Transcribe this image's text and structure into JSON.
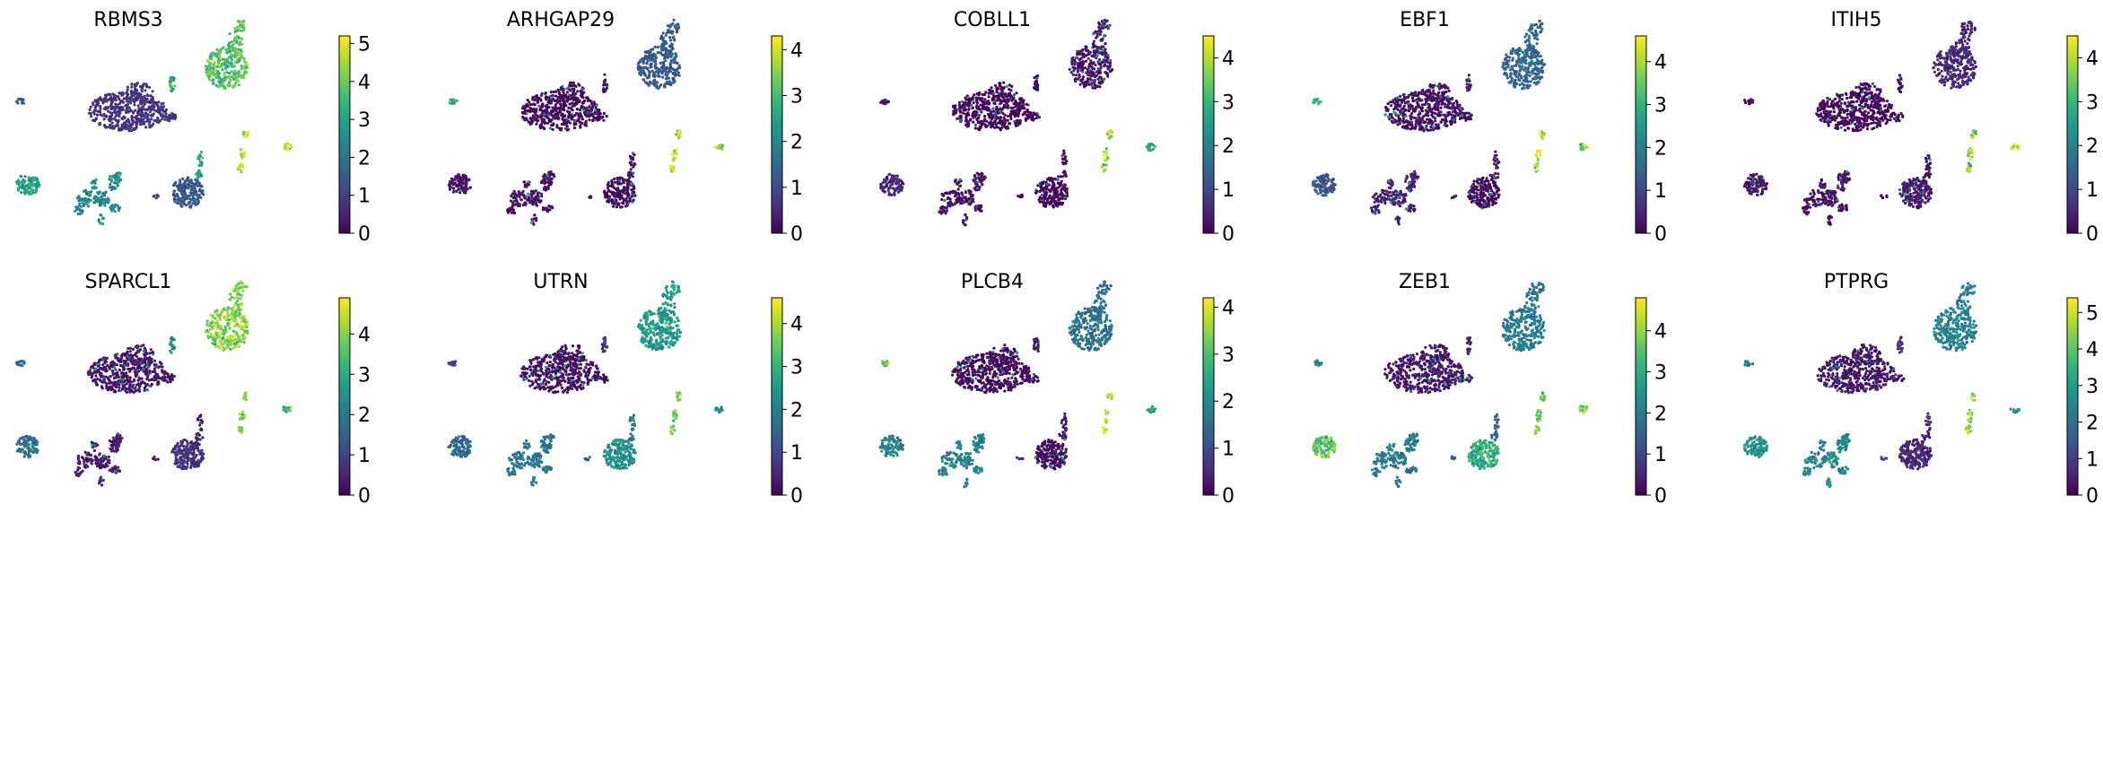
{
  "figure": {
    "description_ref": "UMAP feature plots"
  },
  "chart_data": [
    {
      "type": "scatter",
      "title": "RBMS3",
      "vmax": 5.2,
      "ticks": [
        0,
        1,
        2,
        3,
        4,
        5
      ],
      "cluster_values": {
        "top_right": 3.8,
        "far_left": 1.5,
        "big_center": 0.8,
        "small_center": 3.2,
        "mid_lower": 3.0,
        "right_strips": 4.6,
        "far_right": 4.5,
        "left_lower": 3.0,
        "lower_tree": 2.5,
        "lower_round": 1.5,
        "tiny": 1.0
      }
    },
    {
      "type": "scatter",
      "title": "ARHGAP29",
      "vmax": 4.3,
      "ticks": [
        0,
        1,
        2,
        3,
        4
      ],
      "cluster_values": {
        "top_right": 1.2,
        "far_left": 2.5,
        "big_center": 0.1,
        "small_center": 0.2,
        "mid_lower": 0.2,
        "right_strips": 3.8,
        "far_right": 3.5,
        "left_lower": 0.2,
        "lower_tree": 0.2,
        "lower_round": 0.1,
        "tiny": 0.2
      }
    },
    {
      "type": "scatter",
      "title": "COBLL1",
      "vmax": 4.5,
      "ticks": [
        0,
        1,
        2,
        3,
        4
      ],
      "cluster_values": {
        "top_right": 0.3,
        "far_left": 0.3,
        "big_center": 0.05,
        "small_center": 0.1,
        "mid_lower": 0.2,
        "right_strips": 3.8,
        "far_right": 2.5,
        "left_lower": 0.5,
        "lower_tree": 0.2,
        "lower_round": 0.05,
        "tiny": 0.1
      }
    },
    {
      "type": "scatter",
      "title": "EBF1",
      "vmax": 4.6,
      "ticks": [
        0,
        1,
        2,
        3,
        4
      ],
      "cluster_values": {
        "top_right": 1.5,
        "far_left": 3.0,
        "big_center": 0.2,
        "small_center": 0.3,
        "mid_lower": 0.3,
        "right_strips": 4.2,
        "far_right": 3.8,
        "left_lower": 1.2,
        "lower_tree": 0.4,
        "lower_round": 0.1,
        "tiny": 0.3
      }
    },
    {
      "type": "scatter",
      "title": "ITIH5",
      "vmax": 4.5,
      "ticks": [
        0,
        1,
        2,
        3,
        4
      ],
      "cluster_values": {
        "top_right": 0.5,
        "far_left": 0.2,
        "big_center": 0.1,
        "small_center": 0.1,
        "mid_lower": 0.2,
        "right_strips": 3.6,
        "far_right": 4.0,
        "left_lower": 0.3,
        "lower_tree": 0.2,
        "lower_round": 0.3,
        "tiny": 0.1
      }
    },
    {
      "type": "scatter",
      "title": "SPARCL1",
      "vmax": 4.9,
      "ticks": [
        0,
        1,
        2,
        3,
        4
      ],
      "cluster_values": {
        "top_right": 4.0,
        "far_left": 1.5,
        "big_center": 0.3,
        "small_center": 2.5,
        "mid_lower": 0.3,
        "right_strips": 3.8,
        "far_right": 3.5,
        "left_lower": 1.8,
        "lower_tree": 0.4,
        "lower_round": 0.7,
        "tiny": 0.5
      }
    },
    {
      "type": "scatter",
      "title": "UTRN",
      "vmax": 4.6,
      "ticks": [
        0,
        1,
        2,
        3,
        4
      ],
      "cluster_values": {
        "top_right": 2.5,
        "far_left": 0.8,
        "big_center": 0.2,
        "small_center": 0.8,
        "mid_lower": 2.0,
        "right_strips": 3.5,
        "far_right": 2.5,
        "left_lower": 1.5,
        "lower_tree": 1.8,
        "lower_round": 2.3,
        "tiny": 1.5
      }
    },
    {
      "type": "scatter",
      "title": "PLCB4",
      "vmax": 4.2,
      "ticks": [
        0,
        1,
        2,
        3,
        4
      ],
      "cluster_values": {
        "top_right": 1.6,
        "far_left": 3.4,
        "big_center": 0.1,
        "small_center": 0.3,
        "mid_lower": 0.3,
        "right_strips": 3.8,
        "far_right": 2.5,
        "left_lower": 1.8,
        "lower_tree": 1.9,
        "lower_round": 0.1,
        "tiny": 0.5
      }
    },
    {
      "type": "scatter",
      "title": "ZEB1",
      "vmax": 4.8,
      "ticks": [
        0,
        1,
        2,
        3,
        4
      ],
      "cluster_values": {
        "top_right": 2.0,
        "far_left": 2.0,
        "big_center": 0.3,
        "small_center": 0.6,
        "mid_lower": 1.5,
        "right_strips": 3.6,
        "far_right": 3.8,
        "left_lower": 3.6,
        "lower_tree": 2.0,
        "lower_round": 3.0,
        "tiny": 1.5
      }
    },
    {
      "type": "scatter",
      "title": "PTPRG",
      "vmax": 5.4,
      "ticks": [
        0,
        1,
        2,
        3,
        4,
        5
      ],
      "cluster_values": {
        "top_right": 2.4,
        "far_left": 2.4,
        "big_center": 0.3,
        "small_center": 0.8,
        "mid_lower": 0.6,
        "right_strips": 4.5,
        "far_right": 2.7,
        "left_lower": 2.6,
        "lower_tree": 2.5,
        "lower_round": 0.6,
        "tiny": 1.5
      }
    }
  ]
}
